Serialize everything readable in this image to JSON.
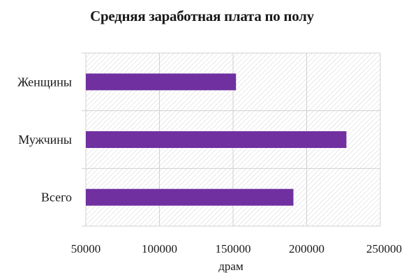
{
  "chart_data": {
    "type": "bar",
    "orientation": "horizontal",
    "title": "Средняя заработная плата по полу",
    "xlabel": "драм",
    "ylabel": "",
    "categories": [
      "Женщины",
      "Мужчины",
      "Всего"
    ],
    "values": [
      152000,
      227000,
      191000
    ],
    "xlim": [
      50000,
      250000
    ],
    "xticks": [
      "50000",
      "100000",
      "150000",
      "200000",
      "250000"
    ],
    "grid": true,
    "legend": "none",
    "bar_color": "#7030a0"
  }
}
